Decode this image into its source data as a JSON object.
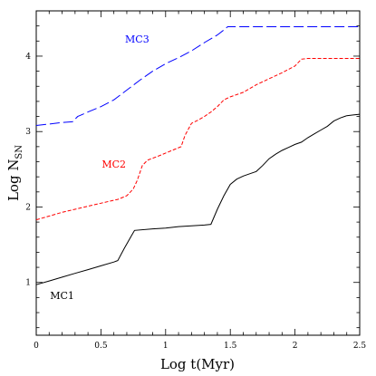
{
  "chart_data": {
    "type": "line",
    "xlabel": "Log t(Myr)",
    "ylabel": "Log N",
    "ylabel_sub": "SN",
    "xlim": [
      0,
      2.5
    ],
    "ylim": [
      0.3,
      4.6
    ],
    "x_ticks": [
      "0",
      "0.5",
      "1",
      "1.5",
      "2",
      "2.5"
    ],
    "x_tick_values": [
      0,
      0.5,
      1,
      1.5,
      2,
      2.5
    ],
    "y_ticks": [
      "1",
      "2",
      "3",
      "4"
    ],
    "y_tick_values": [
      1,
      2,
      3,
      4
    ],
    "grid": false,
    "series": [
      {
        "name": "MC1",
        "color": "#000000",
        "dash": "solid",
        "label_at": [
          0.2,
          0.78
        ],
        "points": [
          [
            0,
            0.97
          ],
          [
            0.1,
            1.02
          ],
          [
            0.2,
            1.07
          ],
          [
            0.3,
            1.12
          ],
          [
            0.4,
            1.17
          ],
          [
            0.5,
            1.22
          ],
          [
            0.6,
            1.27
          ],
          [
            0.63,
            1.29
          ],
          [
            0.68,
            1.45
          ],
          [
            0.73,
            1.6
          ],
          [
            0.76,
            1.69
          ],
          [
            0.9,
            1.71
          ],
          [
            1.0,
            1.72
          ],
          [
            1.1,
            1.74
          ],
          [
            1.2,
            1.75
          ],
          [
            1.3,
            1.76
          ],
          [
            1.35,
            1.77
          ],
          [
            1.4,
            1.97
          ],
          [
            1.45,
            2.15
          ],
          [
            1.5,
            2.3
          ],
          [
            1.55,
            2.37
          ],
          [
            1.6,
            2.41
          ],
          [
            1.65,
            2.44
          ],
          [
            1.7,
            2.47
          ],
          [
            1.75,
            2.55
          ],
          [
            1.8,
            2.64
          ],
          [
            1.85,
            2.7
          ],
          [
            1.9,
            2.75
          ],
          [
            1.95,
            2.79
          ],
          [
            2.0,
            2.83
          ],
          [
            2.05,
            2.86
          ],
          [
            2.1,
            2.92
          ],
          [
            2.15,
            2.97
          ],
          [
            2.2,
            3.02
          ],
          [
            2.25,
            3.07
          ],
          [
            2.3,
            3.14
          ],
          [
            2.35,
            3.18
          ],
          [
            2.4,
            3.21
          ],
          [
            2.45,
            3.22
          ],
          [
            2.5,
            3.23
          ]
        ]
      },
      {
        "name": "MC2",
        "color": "#ff0000",
        "dash": "short",
        "label_at": [
          0.6,
          2.52
        ],
        "points": [
          [
            0,
            1.83
          ],
          [
            0.1,
            1.88
          ],
          [
            0.2,
            1.93
          ],
          [
            0.3,
            1.97
          ],
          [
            0.4,
            2.01
          ],
          [
            0.5,
            2.05
          ],
          [
            0.6,
            2.09
          ],
          [
            0.63,
            2.1
          ],
          [
            0.7,
            2.15
          ],
          [
            0.75,
            2.24
          ],
          [
            0.78,
            2.35
          ],
          [
            0.82,
            2.55
          ],
          [
            0.86,
            2.62
          ],
          [
            0.95,
            2.68
          ],
          [
            1.05,
            2.75
          ],
          [
            1.12,
            2.8
          ],
          [
            1.15,
            2.95
          ],
          [
            1.2,
            3.11
          ],
          [
            1.25,
            3.15
          ],
          [
            1.3,
            3.2
          ],
          [
            1.35,
            3.26
          ],
          [
            1.4,
            3.33
          ],
          [
            1.45,
            3.42
          ],
          [
            1.5,
            3.46
          ],
          [
            1.6,
            3.52
          ],
          [
            1.7,
            3.62
          ],
          [
            1.8,
            3.7
          ],
          [
            1.9,
            3.78
          ],
          [
            2.0,
            3.87
          ],
          [
            2.05,
            3.96
          ],
          [
            2.1,
            3.97
          ],
          [
            2.5,
            3.97
          ]
        ]
      },
      {
        "name": "MC3",
        "color": "#0000ff",
        "dash": "long",
        "label_at": [
          0.78,
          4.18
        ],
        "points": [
          [
            0,
            3.08
          ],
          [
            0.1,
            3.1
          ],
          [
            0.2,
            3.12
          ],
          [
            0.28,
            3.13
          ],
          [
            0.32,
            3.2
          ],
          [
            0.4,
            3.26
          ],
          [
            0.5,
            3.33
          ],
          [
            0.6,
            3.42
          ],
          [
            0.7,
            3.55
          ],
          [
            0.8,
            3.68
          ],
          [
            0.9,
            3.8
          ],
          [
            1.0,
            3.9
          ],
          [
            1.1,
            3.98
          ],
          [
            1.2,
            4.07
          ],
          [
            1.3,
            4.18
          ],
          [
            1.4,
            4.28
          ],
          [
            1.46,
            4.36
          ],
          [
            1.48,
            4.39
          ],
          [
            2.5,
            4.39
          ]
        ]
      }
    ]
  }
}
